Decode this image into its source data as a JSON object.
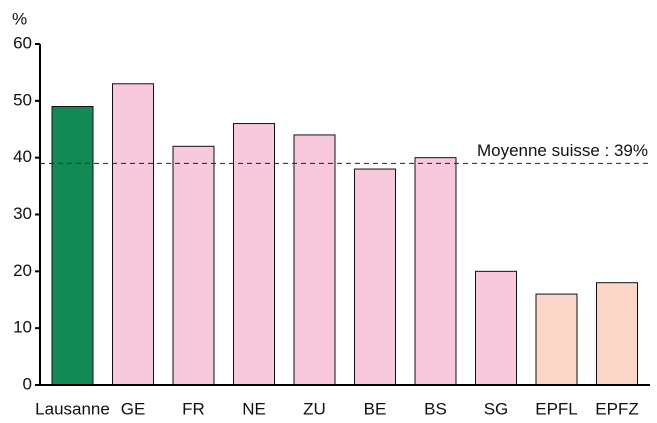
{
  "chart_data": {
    "type": "bar",
    "y_label": "%",
    "categories": [
      "Lausanne",
      "GE",
      "FR",
      "NE",
      "ZU",
      "BE",
      "BS",
      "SG",
      "EPFL",
      "EPFZ"
    ],
    "values": [
      49,
      53,
      42,
      46,
      44,
      38,
      40,
      20,
      16,
      18
    ],
    "colors": [
      "#128a55",
      "#f8c8dc",
      "#f8c8dc",
      "#f8c8dc",
      "#f8c8dc",
      "#f8c8dc",
      "#f8c8dc",
      "#f8c8dc",
      "#fbd6c9",
      "#fbd6c9"
    ],
    "ylim": [
      0,
      60
    ],
    "yticks": [
      0,
      10,
      20,
      30,
      40,
      50,
      60
    ],
    "grid": false,
    "reference": {
      "value": 39,
      "label": "Moyenne suisse : 39%"
    }
  }
}
